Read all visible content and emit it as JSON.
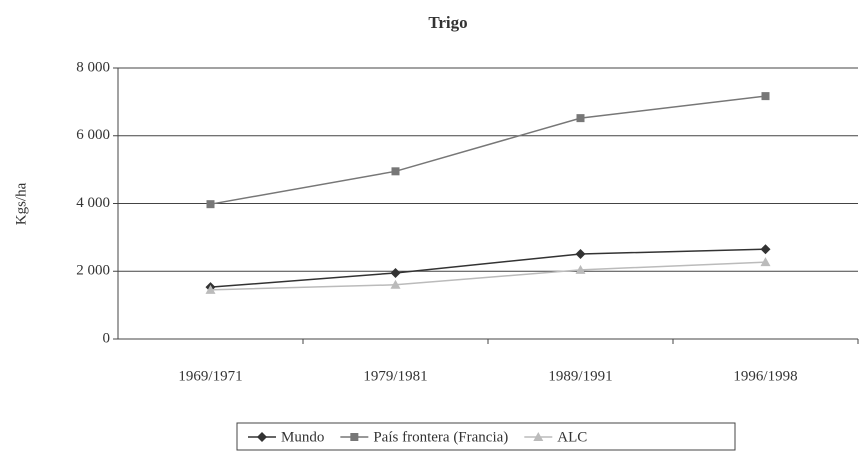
{
  "chart_data": {
    "type": "line",
    "title": "Trigo",
    "y_label": "Kgs/ha",
    "categories": [
      "1969/1971",
      "1979/1981",
      "1989/1991",
      "1996/1998"
    ],
    "series": [
      {
        "name": "Mundo",
        "color": "#333333",
        "marker": "diamond",
        "values": [
          1530,
          1950,
          2510,
          2650
        ]
      },
      {
        "name": "País frontera (Francia)",
        "color": "#777777",
        "marker": "square",
        "values": [
          3980,
          4950,
          6520,
          7170
        ]
      },
      {
        "name": "ALC",
        "color": "#bbbbbb",
        "marker": "triangle",
        "values": [
          1450,
          1600,
          2040,
          2270
        ]
      }
    ],
    "ylim": [
      0,
      8000
    ],
    "yticks": [
      0,
      {
        "value": 2000,
        "label": "2 000"
      },
      {
        "value": 4000,
        "label": "4 000"
      },
      {
        "value": 6000,
        "label": "6 000"
      },
      {
        "value": 8000,
        "label": "8 000"
      }
    ],
    "grid": true,
    "legend": "bottom"
  }
}
